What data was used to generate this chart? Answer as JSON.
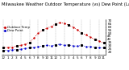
{
  "title": "Milwaukee Weather Outdoor Temperature (vs) Dew Point (Last 24 Hours)",
  "temp_color": "#cc0000",
  "dew_color": "#0000cc",
  "legend_color": "#000000",
  "background_color": "#ffffff",
  "plot_bg_color": "#ffffff",
  "grid_color": "#999999",
  "ylim": [
    15,
    72
  ],
  "ytick_values": [
    20,
    25,
    30,
    35,
    40,
    45,
    50,
    55,
    60,
    65,
    70
  ],
  "ytick_labels": [
    "20",
    "25",
    "30",
    "35",
    "40",
    "45",
    "50",
    "55",
    "60",
    "65",
    "70"
  ],
  "hours": [
    0,
    1,
    2,
    3,
    4,
    5,
    6,
    7,
    8,
    9,
    10,
    11,
    12,
    13,
    14,
    15,
    16,
    17,
    18,
    19,
    20,
    21,
    22,
    23
  ],
  "temp_values": [
    26,
    27,
    27,
    29,
    30,
    32,
    35,
    42,
    50,
    55,
    58,
    61,
    65,
    67,
    66,
    63,
    60,
    55,
    50,
    47,
    43,
    40,
    37,
    34
  ],
  "dew_values": [
    22,
    22,
    23,
    23,
    24,
    25,
    26,
    27,
    28,
    29,
    30,
    29,
    31,
    32,
    30,
    31,
    29,
    29,
    30,
    28,
    28,
    27,
    26,
    26
  ],
  "xlabel_labels": [
    "12",
    "1",
    "2",
    "3",
    "4",
    "5",
    "6",
    "7",
    "8",
    "9",
    "10",
    "11",
    "12",
    "1",
    "2",
    "3",
    "4",
    "5",
    "6",
    "7",
    "8",
    "9",
    "10",
    "11"
  ],
  "legend_temp": "Outdoor Temp",
  "legend_dew": "Dew Point",
  "title_fontsize": 3.8,
  "axis_fontsize": 3.0,
  "legend_fontsize": 2.8,
  "marker_hours": [
    0,
    3,
    6,
    9,
    12,
    15,
    18,
    21,
    23
  ]
}
